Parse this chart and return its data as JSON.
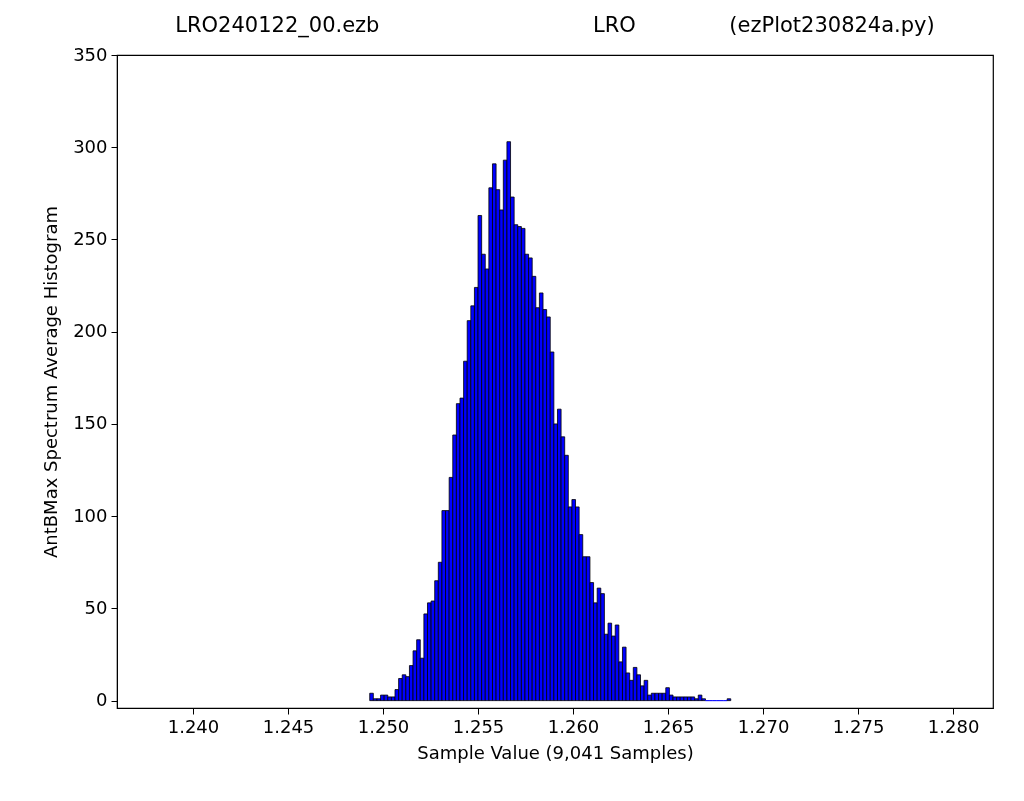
{
  "chart_data": {
    "type": "histogram",
    "title": "LRO240122_00.ezb                                LRO              (ezPlot230824a.py)",
    "xlabel": "Sample Value (9,041 Samples)",
    "ylabel": "AntBMax Spectrum Average Histogram",
    "color": "#0000ff",
    "bins": [
      1.2493,
      1.24949,
      1.24968,
      1.24987,
      1.25006,
      1.25025,
      1.25044,
      1.25063,
      1.25082,
      1.25101,
      1.2512,
      1.25139,
      1.25158,
      1.25177,
      1.25196,
      1.25215,
      1.25234,
      1.25253,
      1.25272,
      1.25291,
      1.2531,
      1.25329,
      1.25348,
      1.25367,
      1.25386,
      1.25405,
      1.25424,
      1.25443,
      1.25462,
      1.25481,
      1.255,
      1.25519,
      1.25538,
      1.25557,
      1.25576,
      1.25595,
      1.25614,
      1.25633,
      1.25652,
      1.25671,
      1.2569,
      1.25709,
      1.25728,
      1.25747,
      1.25766,
      1.25785,
      1.25804,
      1.25823,
      1.25842,
      1.25861,
      1.2588,
      1.25899,
      1.25918,
      1.25937,
      1.25956,
      1.25975,
      1.25994,
      1.26013,
      1.26032,
      1.26051,
      1.2607,
      1.26089,
      1.26108,
      1.26127,
      1.26146,
      1.26165,
      1.26184,
      1.26203,
      1.26222,
      1.26241,
      1.2626,
      1.26279,
      1.26298,
      1.26317,
      1.26336,
      1.26355,
      1.26374,
      1.26393,
      1.26412,
      1.26431,
      1.2645,
      1.26469,
      1.26488,
      1.26507,
      1.26526,
      1.26545,
      1.26564,
      1.26583,
      1.26602,
      1.26621,
      1.2664,
      1.26659,
      1.26678,
      1.26697,
      1.26716,
      1.26735,
      1.26754,
      1.26773,
      1.26792,
      1.26811,
      1.2683
    ],
    "values": [
      4,
      1,
      1,
      3,
      3,
      2,
      2,
      6,
      12,
      14,
      13,
      19,
      27,
      33,
      23,
      47,
      53,
      54,
      65,
      75,
      103,
      103,
      121,
      144,
      161,
      164,
      184,
      206,
      214,
      224,
      263,
      242,
      234,
      278,
      291,
      277,
      266,
      293,
      303,
      273,
      258,
      257,
      256,
      242,
      240,
      230,
      213,
      221,
      212,
      208,
      189,
      150,
      158,
      143,
      133,
      105,
      109,
      105,
      90,
      78,
      78,
      64,
      53,
      61,
      58,
      36,
      42,
      35,
      41,
      21,
      29,
      15,
      11,
      18,
      14,
      8,
      11,
      3,
      4,
      4,
      4,
      4,
      7,
      3,
      2,
      2,
      2,
      2,
      2,
      2,
      1,
      3,
      1,
      0,
      0,
      0,
      0,
      0,
      0,
      1
    ],
    "xlim": [
      1.236,
      1.2821
    ],
    "ylim": [
      -4,
      350
    ],
    "xticks": [
      {
        "value": 1.24,
        "label": "1.240"
      },
      1.245,
      {
        "value": 1.25,
        "label": "1.250"
      },
      1.255,
      {
        "value": 1.26,
        "label": "1.260"
      },
      1.265,
      {
        "value": 1.27,
        "label": "1.270"
      },
      1.275,
      {
        "value": 1.28,
        "label": "1.280"
      }
    ],
    "yticks": [
      0,
      50,
      100,
      150,
      200,
      250,
      300,
      350
    ],
    "grid": false
  }
}
